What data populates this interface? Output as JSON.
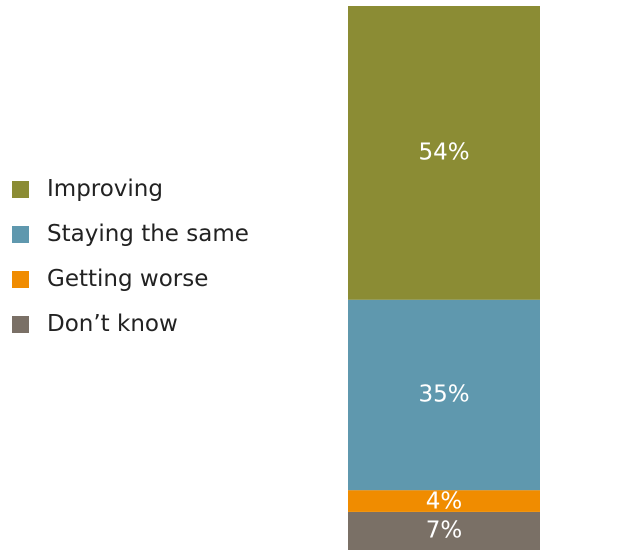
{
  "chart_data": {
    "type": "bar",
    "stacked": true,
    "categories": [
      ""
    ],
    "series": [
      {
        "name": "Improving",
        "values": [
          54
        ],
        "label": "54%",
        "color": "#8b8c34"
      },
      {
        "name": "Staying the same",
        "values": [
          35
        ],
        "label": "35%",
        "color": "#5f98ae"
      },
      {
        "name": "Getting worse",
        "values": [
          4
        ],
        "label": "4%",
        "color": "#f08c00"
      },
      {
        "name": "Don’t know",
        "values": [
          7
        ],
        "label": "7%",
        "color": "#7a7066"
      }
    ],
    "ylim": [
      0,
      100
    ],
    "legend_position": "left",
    "grid": false
  }
}
